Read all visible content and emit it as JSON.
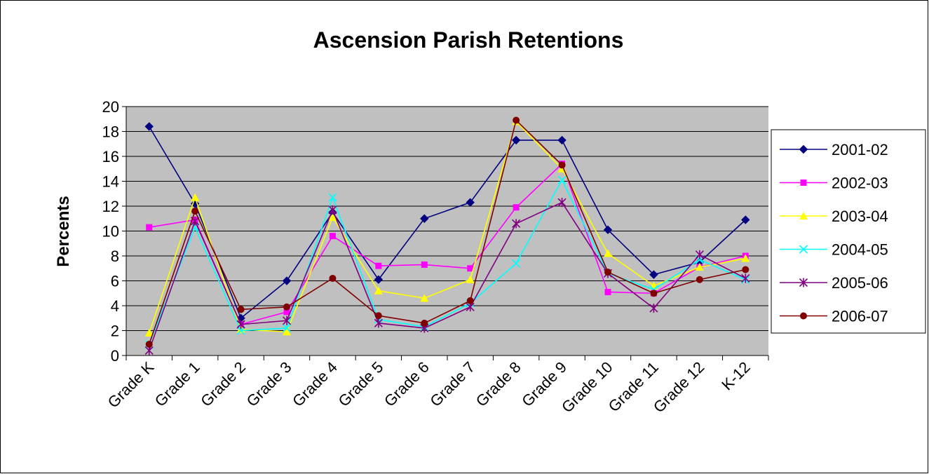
{
  "chart_data": {
    "type": "line",
    "title": "Ascension Parish Retentions",
    "y_label": "Percents",
    "categories": [
      "Grade K",
      "Grade 1",
      "Grade 2",
      "Grade 3",
      "Grade 4",
      "Grade 5",
      "Grade 6",
      "Grade 7",
      "Grade 8",
      "Grade 9",
      "Grade 10",
      "Grade 11",
      "Grade 12",
      "K-12"
    ],
    "ylim": [
      0,
      20
    ],
    "yticks": [
      0,
      2,
      4,
      6,
      8,
      10,
      12,
      14,
      16,
      18,
      20
    ],
    "grid": true,
    "legend": "right",
    "series": [
      {
        "name": "2001-02",
        "color": "#000080",
        "marker": "diamond",
        "values": [
          18.4,
          12.2,
          3.0,
          6.0,
          11.5,
          6.1,
          11.0,
          12.3,
          17.3,
          17.3,
          10.1,
          6.5,
          7.5,
          10.9
        ]
      },
      {
        "name": "2002-03",
        "color": "#ff00ff",
        "marker": "square",
        "values": [
          10.3,
          10.9,
          2.5,
          3.5,
          9.6,
          7.2,
          7.3,
          7.0,
          11.9,
          15.4,
          5.1,
          5.0,
          7.1,
          8.0
        ]
      },
      {
        "name": "2003-04",
        "color": "#ffff00",
        "marker": "triangle",
        "values": [
          1.8,
          12.7,
          2.1,
          1.9,
          11.1,
          5.2,
          4.6,
          6.1,
          18.8,
          15.0,
          8.2,
          5.6,
          7.1,
          7.8
        ]
      },
      {
        "name": "2004-05",
        "color": "#00ffff",
        "marker": "x",
        "values": [
          0.9,
          10.3,
          2.0,
          2.2,
          12.7,
          2.9,
          2.3,
          4.2,
          7.4,
          14.1,
          6.6,
          5.3,
          7.7,
          6.1
        ]
      },
      {
        "name": "2005-06",
        "color": "#800080",
        "marker": "asterisk",
        "values": [
          0.4,
          10.8,
          2.5,
          2.8,
          11.7,
          2.6,
          2.2,
          3.9,
          10.6,
          12.3,
          6.6,
          3.8,
          8.1,
          6.2
        ]
      },
      {
        "name": "2006-07",
        "color": "#800000",
        "marker": "circle",
        "values": [
          0.9,
          11.6,
          3.7,
          3.9,
          6.2,
          3.2,
          2.6,
          4.4,
          18.9,
          15.3,
          6.7,
          5.0,
          6.1,
          6.9
        ]
      }
    ]
  }
}
